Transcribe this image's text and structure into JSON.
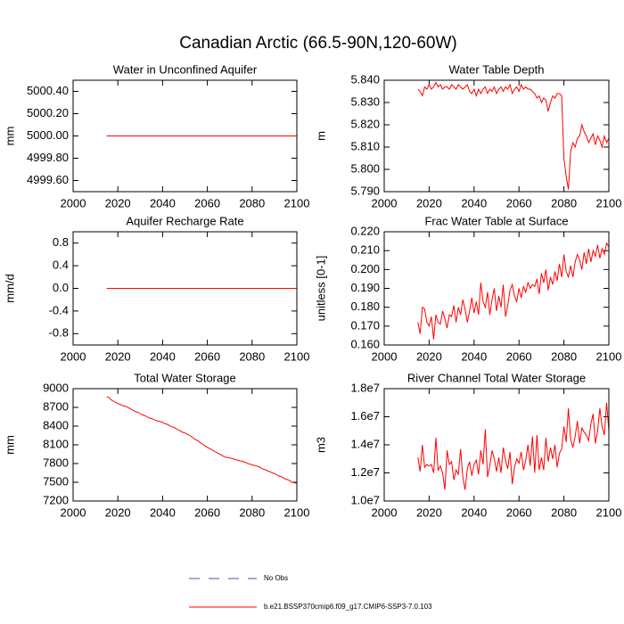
{
  "title": "Canadian Arctic (66.5-90N,120-60W)",
  "legend": [
    {
      "name": "No Obs",
      "color": "#4b4bbf",
      "dash": true
    },
    {
      "name": "b.e21.BSSP370cmip6.f09_g17.CMIP6-SSP3-7.0.103",
      "color": "#ff0000",
      "dash": false
    }
  ],
  "chart_data": [
    {
      "type": "line",
      "title": "Water in Unconfined Aquifer",
      "y_label": "mm",
      "color": "#ff0000",
      "x": [
        2015,
        2100
      ],
      "values": [
        5000,
        5000
      ],
      "xlim": [
        2000,
        2100
      ],
      "xticks": [
        2000,
        2020,
        2040,
        2060,
        2080,
        2100
      ],
      "ylim": [
        4999.5,
        5000.5
      ],
      "yticks": [
        {
          "value": 4999.6,
          "label": "4999.60"
        },
        {
          "value": 4999.8,
          "label": "4999.80"
        },
        {
          "value": 5000,
          "label": "5000.00"
        },
        {
          "value": 5000.2,
          "label": "5000.20"
        },
        {
          "value": 5000.4,
          "label": "5000.40"
        }
      ]
    },
    {
      "type": "line",
      "title": "Water Table Depth",
      "y_label": "m",
      "color": "#ff0000",
      "x": [
        2015,
        2016,
        2017,
        2018,
        2019,
        2020,
        2021,
        2022,
        2023,
        2024,
        2025,
        2026,
        2027,
        2028,
        2029,
        2030,
        2031,
        2032,
        2033,
        2034,
        2035,
        2036,
        2037,
        2038,
        2039,
        2040,
        2041,
        2042,
        2043,
        2044,
        2045,
        2046,
        2047,
        2048,
        2049,
        2050,
        2051,
        2052,
        2053,
        2054,
        2055,
        2056,
        2057,
        2058,
        2059,
        2060,
        2061,
        2062,
        2063,
        2064,
        2065,
        2066,
        2067,
        2068,
        2069,
        2070,
        2071,
        2072,
        2073,
        2074,
        2075,
        2076,
        2077,
        2078,
        2079,
        2080,
        2081,
        2082,
        2083,
        2084,
        2085,
        2086,
        2087,
        2088,
        2089,
        2090,
        2091,
        2092,
        2093,
        2094,
        2095,
        2096,
        2097,
        2098,
        2099,
        2100
      ],
      "values": [
        5.836,
        5.835,
        5.833,
        5.837,
        5.836,
        5.838,
        5.836,
        5.837,
        5.839,
        5.837,
        5.838,
        5.836,
        5.837,
        5.837,
        5.836,
        5.838,
        5.837,
        5.836,
        5.838,
        5.837,
        5.836,
        5.837,
        5.838,
        5.835,
        5.834,
        5.836,
        5.833,
        5.836,
        5.834,
        5.836,
        5.837,
        5.834,
        5.836,
        5.835,
        5.837,
        5.834,
        5.836,
        5.837,
        5.835,
        5.837,
        5.836,
        5.838,
        5.834,
        5.836,
        5.837,
        5.835,
        5.838,
        5.836,
        5.837,
        5.836,
        5.836,
        5.835,
        5.834,
        5.832,
        5.833,
        5.83,
        5.832,
        5.831,
        5.826,
        5.83,
        5.833,
        5.832,
        5.834,
        5.834,
        5.833,
        5.805,
        5.797,
        5.791,
        5.808,
        5.812,
        5.81,
        5.814,
        5.815,
        5.82,
        5.817,
        5.815,
        5.812,
        5.814,
        5.816,
        5.811,
        5.815,
        5.813,
        5.81,
        5.815,
        5.812,
        5.814
      ],
      "xlim": [
        2000,
        2100
      ],
      "xticks": [
        2000,
        2020,
        2040,
        2060,
        2080,
        2100
      ],
      "ylim": [
        5.79,
        5.84
      ],
      "yticks": [
        {
          "value": 5.79,
          "label": "5.790"
        },
        {
          "value": 5.8,
          "label": "5.800"
        },
        {
          "value": 5.81,
          "label": "5.810"
        },
        {
          "value": 5.82,
          "label": "5.820"
        },
        {
          "value": 5.83,
          "label": "5.830"
        },
        {
          "value": 5.84,
          "label": "5.840"
        }
      ]
    },
    {
      "type": "line",
      "title": "Aquifer Recharge Rate",
      "y_label": "mm/d",
      "color": "#ff0000",
      "x": [
        2015,
        2100
      ],
      "values": [
        0,
        0
      ],
      "xlim": [
        2000,
        2100
      ],
      "xticks": [
        2000,
        2020,
        2040,
        2060,
        2080,
        2100
      ],
      "ylim": [
        -1,
        1
      ],
      "yticks": [
        -0.8,
        -0.4,
        {
          "value": 0,
          "label": "0.0"
        },
        0.4,
        0.8
      ]
    },
    {
      "type": "line",
      "title": "Frac Water Table at Surface",
      "y_label": "unitless [0-1]",
      "color": "#ff0000",
      "x": [
        2015,
        2016,
        2017,
        2018,
        2019,
        2020,
        2021,
        2022,
        2023,
        2024,
        2025,
        2026,
        2027,
        2028,
        2029,
        2030,
        2031,
        2032,
        2033,
        2034,
        2035,
        2036,
        2037,
        2038,
        2039,
        2040,
        2041,
        2042,
        2043,
        2044,
        2045,
        2046,
        2047,
        2048,
        2049,
        2050,
        2051,
        2052,
        2053,
        2054,
        2055,
        2056,
        2057,
        2058,
        2059,
        2060,
        2061,
        2062,
        2063,
        2064,
        2065,
        2066,
        2067,
        2068,
        2069,
        2070,
        2071,
        2072,
        2073,
        2074,
        2075,
        2076,
        2077,
        2078,
        2079,
        2080,
        2081,
        2082,
        2083,
        2084,
        2085,
        2086,
        2087,
        2088,
        2089,
        2090,
        2091,
        2092,
        2093,
        2094,
        2095,
        2096,
        2097,
        2098,
        2099,
        2100
      ],
      "values": [
        0.172,
        0.166,
        0.18,
        0.179,
        0.172,
        0.17,
        0.175,
        0.163,
        0.176,
        0.172,
        0.171,
        0.178,
        0.174,
        0.169,
        0.176,
        0.175,
        0.181,
        0.172,
        0.18,
        0.176,
        0.184,
        0.179,
        0.172,
        0.178,
        0.185,
        0.177,
        0.183,
        0.176,
        0.193,
        0.183,
        0.18,
        0.188,
        0.176,
        0.184,
        0.19,
        0.178,
        0.186,
        0.18,
        0.192,
        0.175,
        0.181,
        0.189,
        0.192,
        0.186,
        0.183,
        0.19,
        0.185,
        0.191,
        0.188,
        0.193,
        0.19,
        0.192,
        0.191,
        0.195,
        0.187,
        0.198,
        0.193,
        0.2,
        0.189,
        0.196,
        0.192,
        0.199,
        0.194,
        0.203,
        0.196,
        0.208,
        0.199,
        0.196,
        0.202,
        0.196,
        0.204,
        0.208,
        0.205,
        0.2,
        0.209,
        0.203,
        0.211,
        0.204,
        0.21,
        0.207,
        0.213,
        0.206,
        0.211,
        0.208,
        0.214,
        0.212
      ],
      "xlim": [
        2000,
        2100
      ],
      "xticks": [
        2000,
        2020,
        2040,
        2060,
        2080,
        2100
      ],
      "ylim": [
        0.16,
        0.22
      ],
      "yticks": [
        {
          "value": 0.16,
          "label": "0.160"
        },
        {
          "value": 0.17,
          "label": "0.170"
        },
        {
          "value": 0.18,
          "label": "0.180"
        },
        {
          "value": 0.19,
          "label": "0.190"
        },
        {
          "value": 0.2,
          "label": "0.200"
        },
        {
          "value": 0.21,
          "label": "0.210"
        },
        {
          "value": 0.22,
          "label": "0.220"
        }
      ]
    },
    {
      "type": "line",
      "title": "Total Water Storage",
      "y_label": "mm",
      "color": "#ff0000",
      "x": [
        2015,
        2016,
        2017,
        2018,
        2019,
        2020,
        2021,
        2022,
        2023,
        2024,
        2025,
        2026,
        2027,
        2028,
        2029,
        2030,
        2031,
        2032,
        2033,
        2034,
        2035,
        2036,
        2037,
        2038,
        2039,
        2040,
        2041,
        2042,
        2043,
        2044,
        2045,
        2046,
        2047,
        2048,
        2049,
        2050,
        2051,
        2052,
        2053,
        2054,
        2055,
        2056,
        2057,
        2058,
        2059,
        2060,
        2061,
        2062,
        2063,
        2064,
        2065,
        2066,
        2067,
        2068,
        2069,
        2070,
        2071,
        2072,
        2073,
        2074,
        2075,
        2076,
        2077,
        2078,
        2079,
        2080,
        2081,
        2082,
        2083,
        2084,
        2085,
        2086,
        2087,
        2088,
        2089,
        2090,
        2091,
        2092,
        2093,
        2094,
        2095,
        2096,
        2097,
        2098,
        2099,
        2100
      ],
      "values": [
        8870,
        8860,
        8820,
        8800,
        8780,
        8760,
        8750,
        8730,
        8720,
        8710,
        8690,
        8670,
        8650,
        8630,
        8620,
        8600,
        8580,
        8570,
        8550,
        8530,
        8520,
        8510,
        8490,
        8480,
        8470,
        8460,
        8440,
        8430,
        8410,
        8390,
        8380,
        8360,
        8340,
        8320,
        8300,
        8290,
        8270,
        8250,
        8230,
        8200,
        8180,
        8160,
        8130,
        8110,
        8080,
        8060,
        8040,
        8020,
        8000,
        7980,
        7960,
        7940,
        7920,
        7900,
        7900,
        7890,
        7880,
        7870,
        7860,
        7850,
        7840,
        7830,
        7820,
        7800,
        7790,
        7780,
        7770,
        7760,
        7750,
        7730,
        7710,
        7700,
        7680,
        7670,
        7650,
        7640,
        7620,
        7600,
        7590,
        7570,
        7550,
        7540,
        7520,
        7500,
        7490,
        7490
      ],
      "xlim": [
        2000,
        2100
      ],
      "xticks": [
        2000,
        2020,
        2040,
        2060,
        2080,
        2100
      ],
      "ylim": [
        7200,
        9000
      ],
      "yticks": [
        7200,
        7500,
        7800,
        8100,
        8400,
        8700,
        9000
      ]
    },
    {
      "type": "line",
      "title": "River Channel Total Water Storage",
      "y_label": "m3",
      "color": "#ff0000",
      "x": [
        2015,
        2016,
        2017,
        2018,
        2019,
        2020,
        2021,
        2022,
        2023,
        2024,
        2025,
        2026,
        2027,
        2028,
        2029,
        2030,
        2031,
        2032,
        2033,
        2034,
        2035,
        2036,
        2037,
        2038,
        2039,
        2040,
        2041,
        2042,
        2043,
        2044,
        2045,
        2046,
        2047,
        2048,
        2049,
        2050,
        2051,
        2052,
        2053,
        2054,
        2055,
        2056,
        2057,
        2058,
        2059,
        2060,
        2061,
        2062,
        2063,
        2064,
        2065,
        2066,
        2067,
        2068,
        2069,
        2070,
        2071,
        2072,
        2073,
        2074,
        2075,
        2076,
        2077,
        2078,
        2079,
        2080,
        2081,
        2082,
        2083,
        2084,
        2085,
        2086,
        2087,
        2088,
        2089,
        2090,
        2091,
        2092,
        2093,
        2094,
        2095,
        2096,
        2097,
        2098,
        2099,
        2100
      ],
      "values": [
        13100000.0,
        12100000.0,
        14000000.0,
        12400000.0,
        12600000.0,
        12500000.0,
        12600000.0,
        12000000.0,
        14500000.0,
        12200000.0,
        12500000.0,
        12000000.0,
        10800000.0,
        13600000.0,
        12600000.0,
        12800000.0,
        11500000.0,
        12200000.0,
        11900000.0,
        13700000.0,
        11700000.0,
        10800000.0,
        12300000.0,
        12800000.0,
        11800000.0,
        12600000.0,
        12900000.0,
        11900000.0,
        13600000.0,
        12600000.0,
        15100000.0,
        11700000.0,
        12500000.0,
        13600000.0,
        13000000.0,
        12100000.0,
        13100000.0,
        12000000.0,
        13800000.0,
        12900000.0,
        12300000.0,
        13500000.0,
        11200000.0,
        12400000.0,
        13000000.0,
        12700000.0,
        13500000.0,
        12200000.0,
        12900000.0,
        14000000.0,
        12500000.0,
        14600000.0,
        12000000.0,
        14700000.0,
        12200000.0,
        13100000.0,
        12200000.0,
        14500000.0,
        12800000.0,
        13800000.0,
        13000000.0,
        14000000.0,
        12400000.0,
        13400000.0,
        13700000.0,
        15300000.0,
        14200000.0,
        16600000.0,
        14400000.0,
        13800000.0,
        14600000.0,
        15700000.0,
        14100000.0,
        15200000.0,
        14900000.0,
        14700000.0,
        14300000.0,
        15500000.0,
        16200000.0,
        14100000.0,
        15000000.0,
        16600000.0,
        15300000.0,
        14700000.0,
        17000000.0,
        15000000.0
      ],
      "xlim": [
        2000,
        2100
      ],
      "xticks": [
        2000,
        2020,
        2040,
        2060,
        2080,
        2100
      ],
      "ylim": [
        10000000.0,
        18000000.0
      ],
      "yticks": [
        {
          "value": 10000000.0,
          "label": "1.0e7"
        },
        {
          "value": 12000000.0,
          "label": "1.2e7"
        },
        {
          "value": 14000000.0,
          "label": "1.4e7"
        },
        {
          "value": 16000000.0,
          "label": "1.6e7"
        },
        {
          "value": 18000000.0,
          "label": "1.8e7"
        }
      ]
    }
  ]
}
